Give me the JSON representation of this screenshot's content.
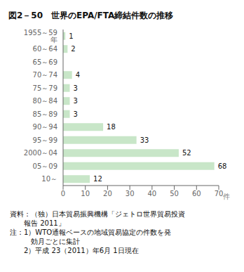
{
  "chart_data": {
    "type": "bar",
    "orientation": "horizontal",
    "title": "図2－50　世界のEPA/FTA締結件数の推移",
    "categories": [
      "1955～59 年",
      "  60～64",
      "  65～69",
      "  70～74",
      "  75～79",
      "  80～84",
      "  85～89",
      "  90～94",
      "  95～99",
      "2000～04",
      "  05～09",
      "  10～"
    ],
    "values": [
      1,
      2,
      0,
      4,
      3,
      3,
      3,
      18,
      33,
      52,
      68,
      12
    ],
    "color": "#c8e6c8",
    "xlim": [
      0,
      70
    ],
    "xticks": [
      0,
      10,
      20,
      30,
      40,
      50,
      60,
      70
    ],
    "xlabel": "件",
    "grid": false,
    "data_labels": true,
    "annotations": [
      "資料：（独）日本貿易振興機構「ジェトロ世界貿易投資",
      "　　報告 2011」",
      "注：1）WTO通報ベースの地域貿易協定の件数を発",
      "　　　効月ごとに集計",
      "　　2）平成 23（2011）年6月 1日現在"
    ]
  }
}
